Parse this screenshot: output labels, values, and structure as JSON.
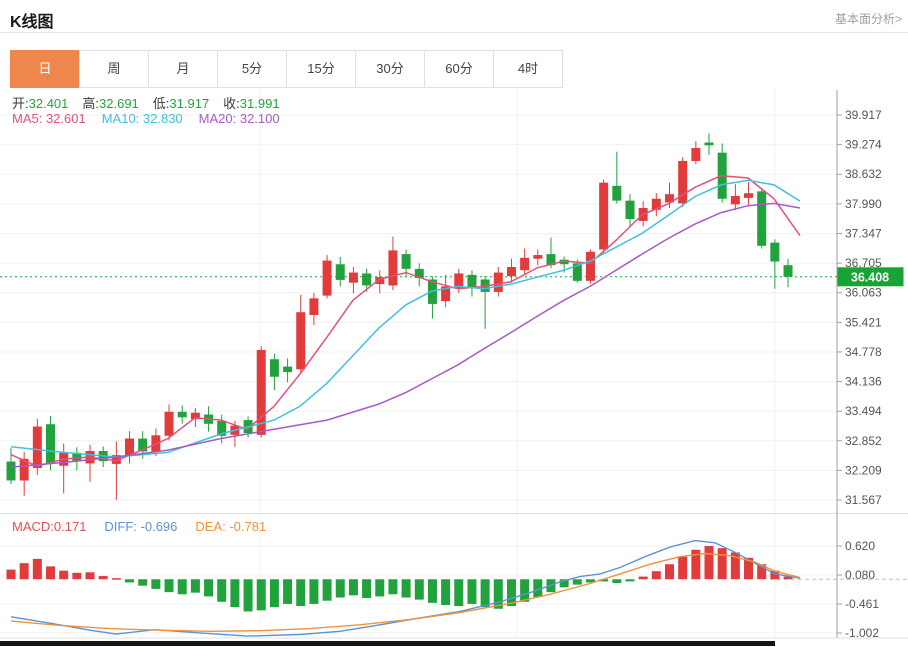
{
  "header": {
    "title": "K线图",
    "link": "基本面分析>"
  },
  "tabs": {
    "items": [
      {
        "label": "日",
        "active": true
      },
      {
        "label": "周",
        "active": false
      },
      {
        "label": "月",
        "active": false
      },
      {
        "label": "5分",
        "active": false
      },
      {
        "label": "15分",
        "active": false
      },
      {
        "label": "30分",
        "active": false
      },
      {
        "label": "60分",
        "active": false
      },
      {
        "label": "4时",
        "active": false
      }
    ]
  },
  "info": {
    "open_label": "开:",
    "open": "32.401",
    "high_label": "高:",
    "high": "32.691",
    "low_label": "低:",
    "low": "31.917",
    "close_label": "收:",
    "close": "31.991",
    "ma5_label": "MA5:",
    "ma5": "32.601",
    "ma10_label": "MA10:",
    "ma10": "32.830",
    "ma20_label": "MA20:",
    "ma20": "32.100",
    "macd_label": "MACD:",
    "macd": "0.171",
    "diff_label": "DIFF:",
    "diff": "-0.696",
    "dea_label": "DEA:",
    "dea": "-0.781"
  },
  "current_price": "36.408",
  "colors": {
    "up": "#e23b3b",
    "down": "#21a23c",
    "ma5": "#e0527c",
    "ma10": "#3fc0de",
    "ma20": "#a55bc6",
    "diff": "#5b93d6",
    "dea": "#ee933e",
    "macd_text": "#e25050",
    "tab_accent": "#ef874d",
    "badge": "#18a434",
    "grid": "#f0f1f2",
    "axis": "#9aa0a6",
    "label": "#555555",
    "dotted": "#21a53a",
    "ohlc_value": "#21a53a"
  },
  "chart_data": [
    {
      "type": "candlestick",
      "title": "K线图 (日)",
      "ylim": [
        31.567,
        39.917
      ],
      "y_ticks": [
        39.917,
        39.274,
        38.632,
        37.99,
        37.347,
        36.705,
        36.063,
        35.421,
        34.778,
        34.136,
        33.494,
        32.852,
        32.209,
        31.567
      ],
      "x_gridlines": [
        260,
        517,
        775
      ],
      "current_price": 36.408,
      "candle_start_x": 11,
      "candle_step": 13.17,
      "candle_width": 9,
      "candles_ohlc": [
        [
          32.401,
          32.691,
          31.917,
          31.991
        ],
        [
          31.99,
          32.61,
          31.66,
          32.46
        ],
        [
          32.26,
          33.33,
          32.11,
          33.16
        ],
        [
          33.21,
          33.39,
          32.21,
          32.36
        ],
        [
          32.31,
          32.79,
          31.71,
          32.59
        ],
        [
          32.59,
          32.71,
          32.21,
          32.41
        ],
        [
          32.36,
          32.76,
          31.96,
          32.63
        ],
        [
          32.63,
          32.73,
          32.28,
          32.41
        ],
        [
          32.35,
          32.84,
          31.57,
          32.54
        ],
        [
          32.52,
          33.06,
          32.36,
          32.9
        ],
        [
          32.9,
          33.06,
          32.46,
          32.62
        ],
        [
          32.62,
          33.12,
          32.52,
          32.97
        ],
        [
          32.96,
          33.64,
          32.86,
          33.48
        ],
        [
          33.48,
          33.62,
          33.22,
          33.36
        ],
        [
          33.32,
          33.56,
          33.15,
          33.46
        ],
        [
          33.42,
          33.6,
          33.05,
          33.22
        ],
        [
          33.28,
          33.42,
          32.8,
          32.96
        ],
        [
          32.98,
          33.28,
          32.72,
          33.18
        ],
        [
          33.3,
          33.38,
          32.92,
          33.02
        ],
        [
          32.98,
          34.9,
          32.92,
          34.82
        ],
        [
          34.62,
          34.74,
          33.95,
          34.24
        ],
        [
          34.46,
          34.64,
          34.12,
          34.34
        ],
        [
          34.4,
          36.02,
          34.32,
          35.64
        ],
        [
          35.58,
          36.06,
          35.36,
          35.94
        ],
        [
          36.0,
          36.88,
          35.94,
          36.76
        ],
        [
          36.68,
          36.84,
          36.2,
          36.34
        ],
        [
          36.28,
          36.62,
          36.05,
          36.5
        ],
        [
          36.48,
          36.58,
          36.08,
          36.22
        ],
        [
          36.25,
          36.55,
          36.05,
          36.4
        ],
        [
          36.22,
          37.28,
          36.12,
          36.98
        ],
        [
          36.9,
          37.0,
          36.4,
          36.58
        ],
        [
          36.58,
          36.7,
          36.2,
          36.38
        ],
        [
          36.35,
          36.42,
          35.5,
          35.82
        ],
        [
          35.88,
          36.45,
          35.75,
          36.2
        ],
        [
          36.15,
          36.58,
          36.05,
          36.48
        ],
        [
          36.45,
          36.55,
          35.98,
          36.16
        ],
        [
          36.35,
          36.42,
          35.28,
          36.08
        ],
        [
          36.08,
          36.62,
          35.98,
          36.5
        ],
        [
          36.42,
          36.8,
          36.28,
          36.62
        ],
        [
          36.55,
          37.02,
          36.45,
          36.82
        ],
        [
          36.8,
          37.0,
          36.65,
          36.88
        ],
        [
          36.9,
          37.26,
          36.6,
          36.66
        ],
        [
          36.78,
          36.85,
          36.5,
          36.68
        ],
        [
          36.7,
          36.78,
          36.28,
          36.32
        ],
        [
          36.32,
          37.0,
          36.26,
          36.95
        ],
        [
          37.0,
          38.52,
          36.9,
          38.45
        ],
        [
          38.38,
          39.12,
          38.0,
          38.06
        ],
        [
          38.06,
          38.2,
          37.48,
          37.66
        ],
        [
          37.62,
          38.05,
          37.5,
          37.9
        ],
        [
          37.86,
          38.22,
          37.72,
          38.1
        ],
        [
          38.02,
          38.45,
          37.9,
          38.2
        ],
        [
          38.0,
          39.0,
          37.92,
          38.92
        ],
        [
          38.92,
          39.35,
          38.85,
          39.2
        ],
        [
          39.32,
          39.52,
          39.05,
          39.26
        ],
        [
          39.1,
          39.3,
          38.02,
          38.1
        ],
        [
          37.98,
          38.42,
          37.85,
          38.16
        ],
        [
          38.12,
          38.46,
          37.95,
          38.22
        ],
        [
          38.26,
          38.32,
          37.02,
          37.08
        ],
        [
          37.15,
          37.22,
          36.15,
          36.74
        ],
        [
          36.66,
          36.8,
          36.18,
          36.41
        ]
      ],
      "series": [
        {
          "name": "MA5",
          "points": [
            [
              11,
              32.55
            ],
            [
              37,
              32.3
            ],
            [
              63,
              32.45
            ],
            [
              89,
              32.5
            ],
            [
              116,
              32.42
            ],
            [
              142,
              32.65
            ],
            [
              168,
              32.9
            ],
            [
              195,
              33.35
            ],
            [
              221,
              33.3
            ],
            [
              247,
              33.1
            ],
            [
              274,
              33.6
            ],
            [
              300,
              34.3
            ],
            [
              327,
              35.1
            ],
            [
              353,
              35.9
            ],
            [
              379,
              36.35
            ],
            [
              406,
              36.5
            ],
            [
              432,
              36.3
            ],
            [
              458,
              36.15
            ],
            [
              484,
              36.2
            ],
            [
              511,
              36.3
            ],
            [
              537,
              36.6
            ],
            [
              564,
              36.75
            ],
            [
              590,
              36.7
            ],
            [
              616,
              37.2
            ],
            [
              642,
              37.75
            ],
            [
              669,
              38.0
            ],
            [
              695,
              38.35
            ],
            [
              721,
              38.6
            ],
            [
              748,
              38.55
            ],
            [
              774,
              38.1
            ],
            [
              800,
              37.3
            ]
          ]
        },
        {
          "name": "MA10",
          "points": [
            [
              11,
              32.72
            ],
            [
              63,
              32.6
            ],
            [
              116,
              32.5
            ],
            [
              168,
              32.6
            ],
            [
              221,
              33.0
            ],
            [
              274,
              33.3
            ],
            [
              300,
              33.6
            ],
            [
              327,
              34.1
            ],
            [
              353,
              34.7
            ],
            [
              379,
              35.3
            ],
            [
              406,
              35.8
            ],
            [
              432,
              36.1
            ],
            [
              458,
              36.2
            ],
            [
              484,
              36.15
            ],
            [
              511,
              36.25
            ],
            [
              537,
              36.4
            ],
            [
              564,
              36.55
            ],
            [
              590,
              36.75
            ],
            [
              616,
              37.05
            ],
            [
              642,
              37.35
            ],
            [
              669,
              37.75
            ],
            [
              695,
              38.15
            ],
            [
              721,
              38.4
            ],
            [
              748,
              38.5
            ],
            [
              774,
              38.4
            ],
            [
              800,
              38.05
            ]
          ]
        },
        {
          "name": "MA20",
          "points": [
            [
              11,
              32.28
            ],
            [
              63,
              32.38
            ],
            [
              116,
              32.5
            ],
            [
              168,
              32.65
            ],
            [
              221,
              32.9
            ],
            [
              274,
              33.1
            ],
            [
              327,
              33.3
            ],
            [
              379,
              33.65
            ],
            [
              406,
              33.9
            ],
            [
              432,
              34.2
            ],
            [
              458,
              34.5
            ],
            [
              484,
              34.85
            ],
            [
              511,
              35.2
            ],
            [
              537,
              35.55
            ],
            [
              564,
              35.9
            ],
            [
              590,
              36.2
            ],
            [
              616,
              36.55
            ],
            [
              642,
              36.9
            ],
            [
              669,
              37.25
            ],
            [
              695,
              37.55
            ],
            [
              721,
              37.8
            ],
            [
              748,
              37.95
            ],
            [
              774,
              38.0
            ],
            [
              800,
              37.9
            ]
          ]
        }
      ]
    },
    {
      "type": "macd",
      "title": "MACD",
      "ylim": [
        -1.002,
        0.62
      ],
      "y_ticks": [
        0.62,
        0.08,
        -0.461,
        -1.002
      ],
      "x_gridlines": [
        260,
        517,
        775
      ],
      "bars": [
        0.18,
        0.3,
        0.38,
        0.24,
        0.16,
        0.12,
        0.13,
        0.06,
        0.02,
        -0.06,
        -0.12,
        -0.18,
        -0.24,
        -0.28,
        -0.25,
        -0.32,
        -0.42,
        -0.52,
        -0.6,
        -0.58,
        -0.52,
        -0.46,
        -0.5,
        -0.46,
        -0.4,
        -0.34,
        -0.3,
        -0.35,
        -0.32,
        -0.28,
        -0.34,
        -0.38,
        -0.44,
        -0.48,
        -0.5,
        -0.46,
        -0.52,
        -0.55,
        -0.5,
        -0.42,
        -0.33,
        -0.24,
        -0.15,
        -0.1,
        -0.06,
        -0.04,
        -0.07,
        -0.04,
        0.05,
        0.15,
        0.28,
        0.42,
        0.55,
        0.62,
        0.58,
        0.5,
        0.4,
        0.28,
        0.16,
        0.05
      ],
      "series": [
        {
          "name": "DIFF",
          "points": [
            [
              11,
              -0.7
            ],
            [
              50,
              -0.82
            ],
            [
              90,
              -0.95
            ],
            [
              116,
              -1.02
            ],
            [
              155,
              -0.94
            ],
            [
              200,
              -1.0
            ],
            [
              247,
              -1.06
            ],
            [
              300,
              -1.03
            ],
            [
              340,
              -0.97
            ],
            [
              380,
              -0.85
            ],
            [
              420,
              -0.72
            ],
            [
              460,
              -0.6
            ],
            [
              500,
              -0.42
            ],
            [
              530,
              -0.25
            ],
            [
              560,
              -0.05
            ],
            [
              580,
              0.05
            ],
            [
              600,
              0.1
            ],
            [
              620,
              0.22
            ],
            [
              645,
              0.42
            ],
            [
              670,
              0.6
            ],
            [
              695,
              0.72
            ],
            [
              715,
              0.68
            ],
            [
              735,
              0.5
            ],
            [
              755,
              0.3
            ],
            [
              775,
              0.1
            ],
            [
              800,
              0.02
            ]
          ]
        },
        {
          "name": "DEA",
          "points": [
            [
              11,
              -0.78
            ],
            [
              60,
              -0.86
            ],
            [
              110,
              -0.92
            ],
            [
              160,
              -0.95
            ],
            [
              210,
              -0.97
            ],
            [
              260,
              -0.96
            ],
            [
              310,
              -0.92
            ],
            [
              360,
              -0.85
            ],
            [
              410,
              -0.75
            ],
            [
              460,
              -0.62
            ],
            [
              510,
              -0.45
            ],
            [
              550,
              -0.28
            ],
            [
              590,
              -0.08
            ],
            [
              620,
              0.1
            ],
            [
              650,
              0.28
            ],
            [
              680,
              0.42
            ],
            [
              705,
              0.48
            ],
            [
              730,
              0.44
            ],
            [
              755,
              0.32
            ],
            [
              775,
              0.15
            ],
            [
              800,
              0.03
            ]
          ]
        }
      ]
    }
  ]
}
